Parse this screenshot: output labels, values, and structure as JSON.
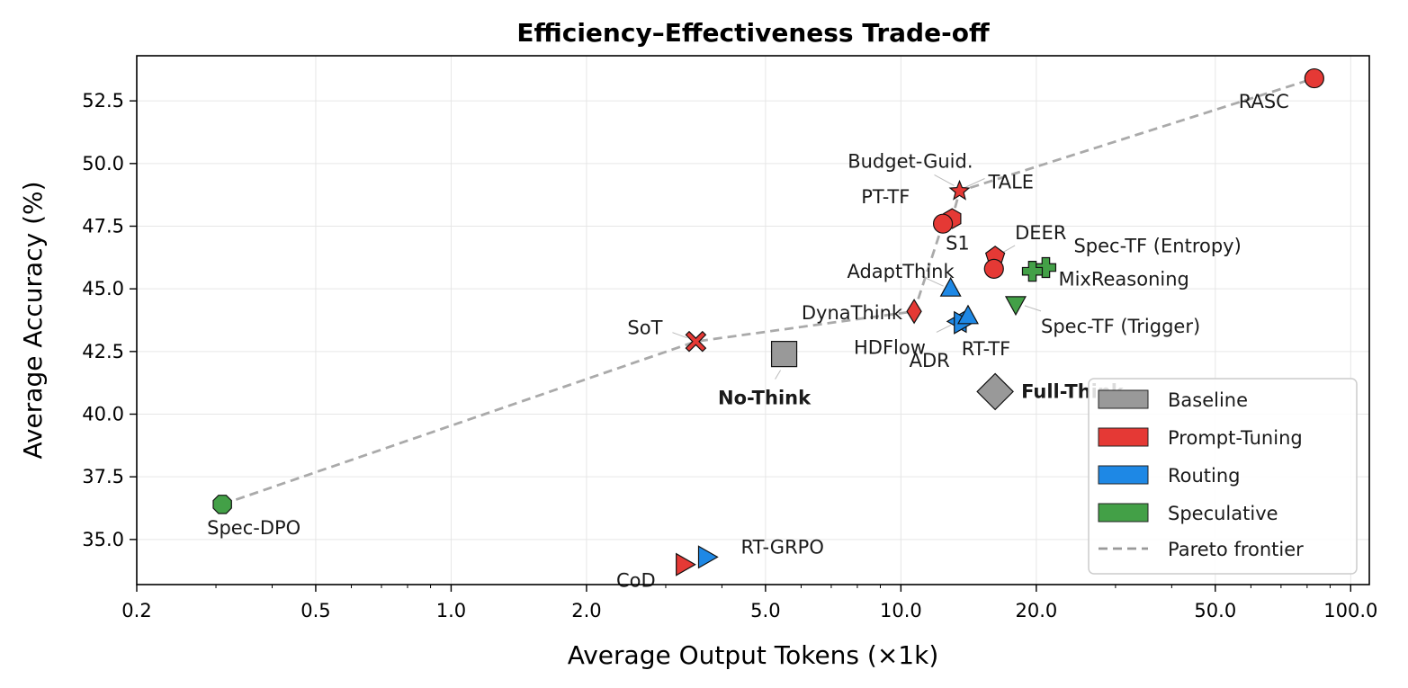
{
  "chart_data": {
    "type": "scatter",
    "title": "Efficiency–Effectiveness Trade-off",
    "xlabel": "Average Output Tokens (×1k)",
    "ylabel": "Average Accuracy (%)",
    "xscale": "log",
    "xlim": [
      0.2,
      110
    ],
    "ylim": [
      33.2,
      54.3
    ],
    "xticks": [
      {
        "v": 0.2,
        "label": "0.2"
      },
      {
        "v": 0.5,
        "label": "0.5"
      },
      {
        "v": 1.0,
        "label": "1.0"
      },
      {
        "v": 2.0,
        "label": "2.0"
      },
      {
        "v": 5.0,
        "label": "5.0"
      },
      {
        "v": 10.0,
        "label": "10.0"
      },
      {
        "v": 20.0,
        "label": "20.0"
      },
      {
        "v": 50.0,
        "label": "50.0"
      },
      {
        "v": 100.0,
        "label": "100.0"
      }
    ],
    "yticks": [
      {
        "v": 35.0,
        "label": "35.0"
      },
      {
        "v": 37.5,
        "label": "37.5"
      },
      {
        "v": 40.0,
        "label": "40.0"
      },
      {
        "v": 42.5,
        "label": "42.5"
      },
      {
        "v": 45.0,
        "label": "45.0"
      },
      {
        "v": 47.5,
        "label": "47.5"
      },
      {
        "v": 50.0,
        "label": "50.0"
      },
      {
        "v": 52.5,
        "label": "52.5"
      }
    ],
    "grid": true,
    "legend_position": "bottom-right",
    "categories": [
      {
        "name": "Baseline",
        "color": "#999999"
      },
      {
        "name": "Prompt-Tuning",
        "color": "#e53935"
      },
      {
        "name": "Routing",
        "color": "#1e88e5"
      },
      {
        "name": "Speculative",
        "color": "#43a047"
      }
    ],
    "pareto_label": "Pareto frontier",
    "pareto_color": "#aaaaaa",
    "pareto_frontier": [
      {
        "x": 0.31,
        "y": 36.4
      },
      {
        "x": 3.5,
        "y": 42.9
      },
      {
        "x": 10.7,
        "y": 44.1
      },
      {
        "x": 12.4,
        "y": 47.6
      },
      {
        "x": 13.0,
        "y": 47.8
      },
      {
        "x": 13.5,
        "y": 48.9
      },
      {
        "x": 83.0,
        "y": 53.4
      }
    ],
    "points": [
      {
        "name": "RASC",
        "x": 83.0,
        "y": 53.4,
        "category": "Prompt-Tuning",
        "marker": "circle",
        "bold": false
      },
      {
        "name": "Budget-Guid.",
        "x": 13.5,
        "y": 48.9,
        "category": "Prompt-Tuning",
        "marker": "star",
        "bold": false
      },
      {
        "name": "TALE",
        "x": 13.5,
        "y": 48.9,
        "category": "Prompt-Tuning",
        "marker": "none",
        "bold": false
      },
      {
        "name": "PT-TF",
        "x": 13.0,
        "y": 47.8,
        "category": "Prompt-Tuning",
        "marker": "hexagon",
        "bold": false
      },
      {
        "name": "S1",
        "x": 12.4,
        "y": 47.6,
        "category": "Prompt-Tuning",
        "marker": "circle",
        "bold": false
      },
      {
        "name": "DEER",
        "x": 16.2,
        "y": 46.3,
        "category": "Prompt-Tuning",
        "marker": "pentagon",
        "bold": false
      },
      {
        "name": "",
        "x": 16.1,
        "y": 45.8,
        "category": "Prompt-Tuning",
        "marker": "circle",
        "bold": false
      },
      {
        "name": "Spec-TF (Entropy)",
        "x": 21.0,
        "y": 45.85,
        "category": "Speculative",
        "marker": "plus",
        "bold": false
      },
      {
        "name": "MixReasoning",
        "x": 19.6,
        "y": 45.7,
        "category": "Speculative",
        "marker": "plus",
        "bold": false
      },
      {
        "name": "AdaptThink",
        "x": 12.9,
        "y": 45.0,
        "category": "Routing",
        "marker": "triangle-up",
        "bold": false
      },
      {
        "name": "Spec-TF (Trigger)",
        "x": 18.0,
        "y": 44.4,
        "category": "Speculative",
        "marker": "triangle-down",
        "bold": false
      },
      {
        "name": "DynaThink",
        "x": 10.7,
        "y": 44.1,
        "category": "Prompt-Tuning",
        "marker": "diamond",
        "bold": false
      },
      {
        "name": "HDFlow",
        "x": 13.4,
        "y": 43.7,
        "category": "Routing",
        "marker": "triangle-left",
        "bold": false
      },
      {
        "name": "ADR",
        "x": 13.7,
        "y": 43.65,
        "category": "Routing",
        "marker": "triangle-right",
        "bold": false
      },
      {
        "name": "RT-TF",
        "x": 14.1,
        "y": 43.9,
        "category": "Routing",
        "marker": "triangle-up",
        "bold": false
      },
      {
        "name": "SoT",
        "x": 3.5,
        "y": 42.9,
        "category": "Prompt-Tuning",
        "marker": "x",
        "bold": false
      },
      {
        "name": "No-Think",
        "x": 5.5,
        "y": 42.4,
        "category": "Baseline",
        "marker": "square",
        "bold": true
      },
      {
        "name": "Full-Think",
        "x": 16.2,
        "y": 40.9,
        "category": "Baseline",
        "marker": "diamond-big",
        "bold": true
      },
      {
        "name": "Spec-DPO",
        "x": 0.31,
        "y": 36.4,
        "category": "Speculative",
        "marker": "octagon",
        "bold": false
      },
      {
        "name": "RT-GRPO",
        "x": 3.7,
        "y": 34.3,
        "category": "Routing",
        "marker": "triangle-right",
        "bold": false
      },
      {
        "name": "CoD",
        "x": 3.3,
        "y": 34.0,
        "category": "Prompt-Tuning",
        "marker": "triangle-right",
        "bold": false
      }
    ]
  }
}
